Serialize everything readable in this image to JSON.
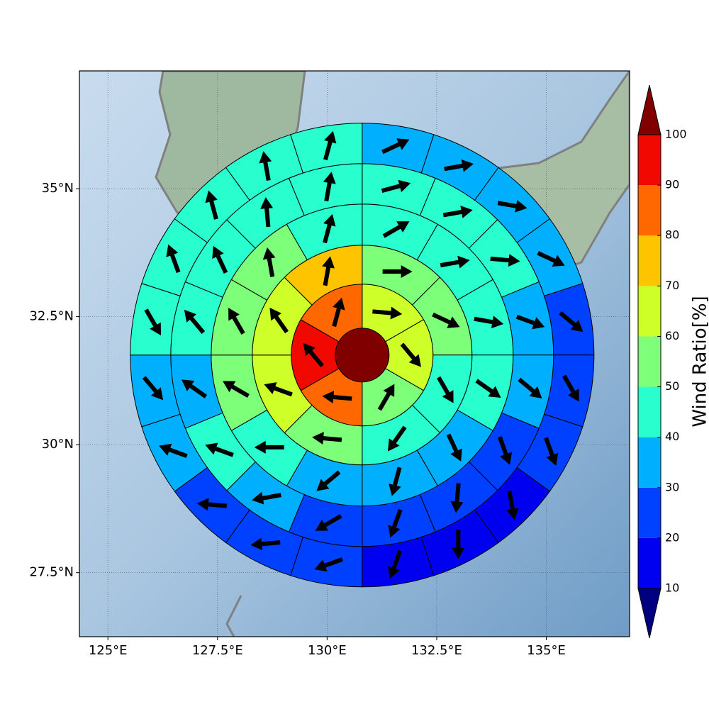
{
  "chart_data": {
    "type": "polar_sectors",
    "xticks": [
      {
        "value": 125,
        "label": "125°E"
      },
      {
        "value": 127.5,
        "label": "127.5°E"
      },
      {
        "value": 130,
        "label": "130°E"
      },
      {
        "value": 132.5,
        "label": "132.5°E"
      },
      {
        "value": 135,
        "label": "135°E"
      }
    ],
    "yticks": [
      {
        "value": 27.5,
        "label": "27.5°N"
      },
      {
        "value": 30,
        "label": "30°N"
      },
      {
        "value": 32.5,
        "label": "32.5°N"
      },
      {
        "value": 35,
        "label": "35°N"
      }
    ],
    "xlim": [
      124.35,
      136.9
    ],
    "ylim": [
      26.25,
      37.3
    ],
    "grid": true,
    "center": {
      "lon": 130.8,
      "lat": 31.75
    },
    "center_value": 105,
    "rings": [
      {
        "values": [
          65,
          65,
          55,
          85,
          95,
          85
        ],
        "directions": [
          95,
          140,
          30,
          275,
          320,
          15
        ]
      },
      {
        "values": [
          55,
          55,
          45,
          45,
          55,
          65,
          65,
          75
        ],
        "directions": [
          90,
          115,
          150,
          215,
          275,
          290,
          325,
          10
        ]
      },
      {
        "values": [
          45,
          45,
          45,
          45,
          35,
          35,
          35,
          45,
          55,
          55,
          55,
          45
        ],
        "directions": [
          60,
          80,
          100,
          125,
          155,
          195,
          230,
          270,
          300,
          330,
          350,
          15
        ]
      },
      {
        "values": [
          45,
          45,
          45,
          35,
          35,
          25,
          25,
          25,
          25,
          35,
          45,
          35,
          45,
          45,
          45,
          45
        ],
        "directions": [
          75,
          80,
          95,
          110,
          130,
          160,
          185,
          200,
          240,
          260,
          290,
          305,
          320,
          335,
          355,
          10
        ]
      },
      {
        "values": [
          35,
          35,
          35,
          35,
          25,
          25,
          25,
          15,
          15,
          15,
          25,
          25,
          25,
          35,
          35,
          45,
          45,
          45,
          45,
          45
        ],
        "directions": [
          65,
          80,
          100,
          115,
          130,
          150,
          160,
          170,
          180,
          200,
          250,
          265,
          275,
          290,
          140,
          150,
          340,
          345,
          350,
          15
        ]
      }
    ],
    "colorbar": {
      "label": "Wind Ratio[%]",
      "ticks": [
        10,
        20,
        30,
        40,
        50,
        60,
        70,
        80,
        90,
        100
      ],
      "colors": [
        "#0000f0",
        "#0040ff",
        "#00b0ff",
        "#29ffce",
        "#7dff7a",
        "#ceff29",
        "#ffc400",
        "#ff6800",
        "#f10800"
      ],
      "over": "#800000",
      "under": "#000080"
    }
  }
}
